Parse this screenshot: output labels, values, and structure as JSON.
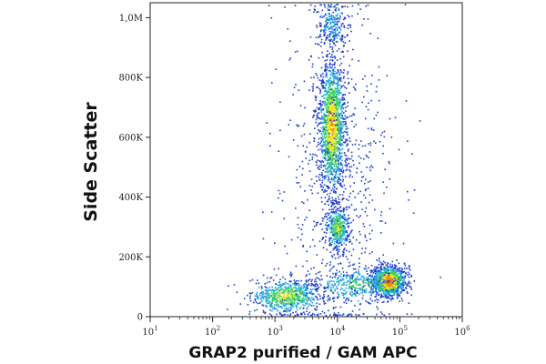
{
  "chart_data": {
    "type": "scatter",
    "plot_style": "flow cytometry density dot plot",
    "title": "",
    "xlabel": "GRAP2 purified / GAM APC",
    "ylabel": "Side Scatter",
    "xscale": "log",
    "xlim": [
      10,
      1000000
    ],
    "ylim": [
      0,
      1050000
    ],
    "x_ticks": [
      {
        "value": 10,
        "base": "10",
        "exp": "1"
      },
      {
        "value": 100,
        "base": "10",
        "exp": "2"
      },
      {
        "value": 1000,
        "base": "10",
        "exp": "3"
      },
      {
        "value": 10000,
        "base": "10",
        "exp": "4"
      },
      {
        "value": 100000,
        "base": "10",
        "exp": "5"
      },
      {
        "value": 1000000,
        "base": "10",
        "exp": "6"
      }
    ],
    "y_ticks": [
      {
        "value": 0,
        "label": "0"
      },
      {
        "value": 200000,
        "label": "200K"
      },
      {
        "value": 400000,
        "label": "400K"
      },
      {
        "value": 600000,
        "label": "600K"
      },
      {
        "value": 800000,
        "label": "800K"
      },
      {
        "value": 1000000,
        "label": "1,0M"
      }
    ],
    "grid": false,
    "legend": "none",
    "density_colors": [
      "#1a3ccc",
      "#22a6e6",
      "#3ccf5a",
      "#f2e21c",
      "#f28a12",
      "#e01818"
    ],
    "populations": [
      {
        "x_center": 1500,
        "y_center": 70000,
        "x_spread_decades": 0.28,
        "y_spread": 28000,
        "points": 700,
        "peak_level": 3
      },
      {
        "x_center": 8000,
        "y_center": 640000,
        "x_spread_decades": 0.1,
        "y_spread": 110000,
        "points": 1500,
        "peak_level": 4
      },
      {
        "x_center": 10000,
        "y_center": 300000,
        "x_spread_decades": 0.09,
        "y_spread": 35000,
        "points": 400,
        "peak_level": 3
      },
      {
        "x_center": 65000,
        "y_center": 120000,
        "x_spread_decades": 0.13,
        "y_spread": 25000,
        "points": 1100,
        "peak_level": 5
      },
      {
        "x_center": 20000,
        "y_center": 110000,
        "x_spread_decades": 0.35,
        "y_spread": 30000,
        "points": 400,
        "peak_level": 2
      },
      {
        "x_center": 8000,
        "y_center": 980000,
        "x_spread_decades": 0.12,
        "y_spread": 40000,
        "points": 250,
        "peak_level": 1
      },
      {
        "x_center": 9000,
        "y_center": 450000,
        "x_spread_decades": 0.45,
        "y_spread": 280000,
        "points": 700,
        "peak_level": 0
      }
    ]
  }
}
